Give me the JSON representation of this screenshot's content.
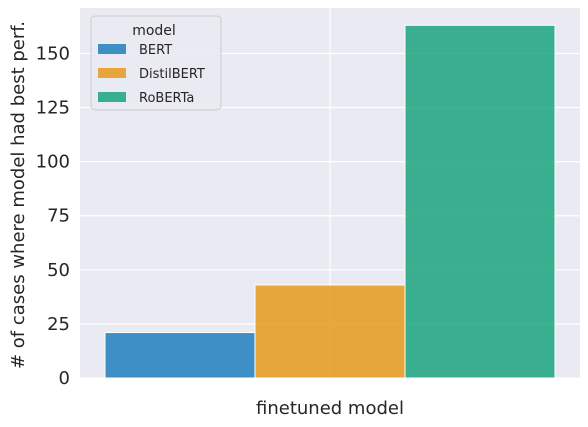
{
  "chart_data": {
    "type": "bar",
    "categories": [
      "finetuned model"
    ],
    "series": [
      {
        "name": "BERT",
        "values": [
          21
        ],
        "color": "#1f7fbd"
      },
      {
        "name": "DistilBERT",
        "values": [
          43
        ],
        "color": "#e69a1a"
      },
      {
        "name": "RoBERTa",
        "values": [
          163
        ],
        "color": "#1aa47e"
      }
    ],
    "xlabel": "finetuned model",
    "ylabel": "# of cases where model had best perf.",
    "ylim": [
      0,
      171
    ],
    "yticks": [
      "0",
      "25",
      "50",
      "75",
      "100",
      "125",
      "150"
    ],
    "grid": true,
    "background_color": "#eaeaf2",
    "legend": {
      "title": "model",
      "placement": "top-left"
    }
  }
}
